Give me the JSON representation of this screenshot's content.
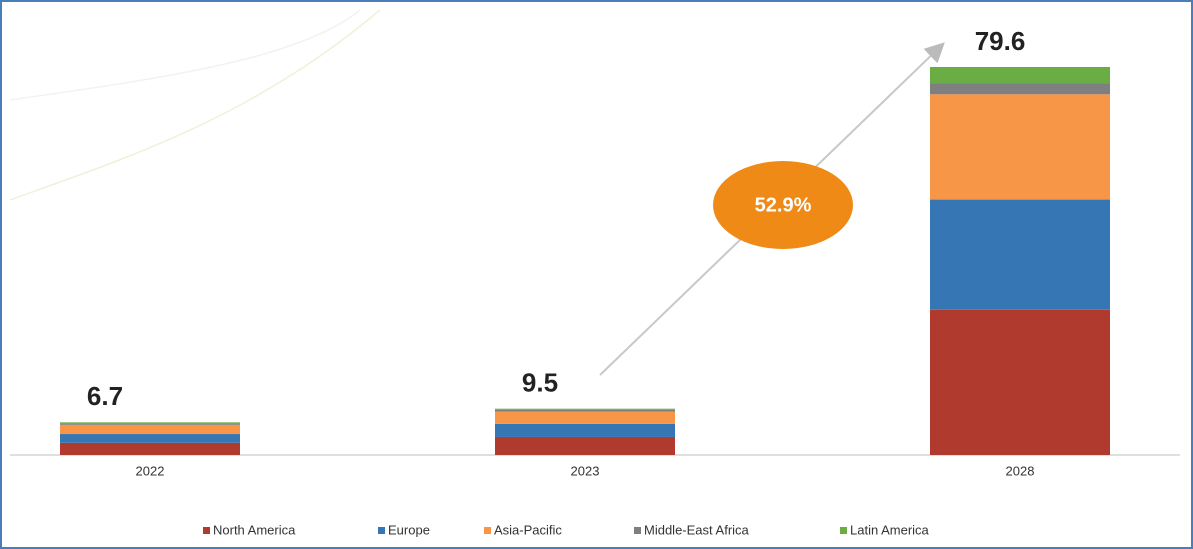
{
  "chart_data": {
    "type": "stacked-bar",
    "categories": [
      "2022",
      "2023",
      "2028"
    ],
    "totals": [
      6.7,
      9.5,
      79.6
    ],
    "annotation": "52.9%",
    "series": [
      {
        "name": "North America",
        "color": "#b03a2e",
        "values": [
          2.5,
          3.7,
          29.8
        ]
      },
      {
        "name": "Europe",
        "color": "#3776b5",
        "values": [
          1.8,
          2.7,
          22.6
        ]
      },
      {
        "name": "Asia-Pacific",
        "color": "#f79646",
        "values": [
          1.9,
          2.5,
          21.6
        ]
      },
      {
        "name": "Middle-East Africa",
        "color": "#7f7f7f",
        "values": [
          0.3,
          0.4,
          2.3
        ]
      },
      {
        "name": "Latin America",
        "color": "#6aad45",
        "values": [
          0.2,
          0.2,
          3.3
        ]
      }
    ]
  }
}
